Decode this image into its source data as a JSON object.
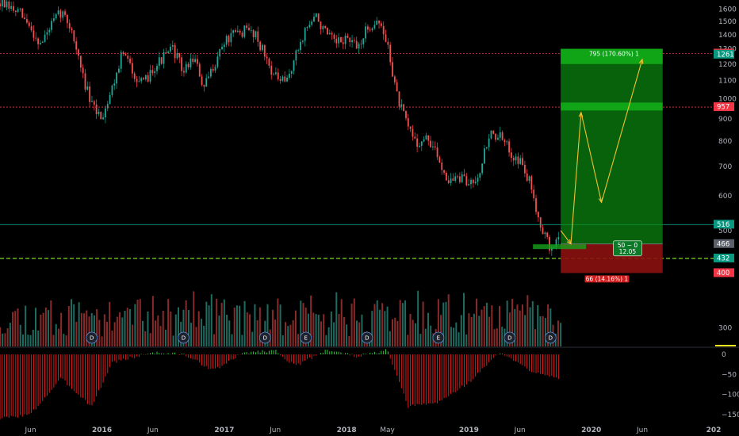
{
  "chart_data": {
    "type": "candlestick",
    "price_axis": {
      "ticks": [
        1600,
        1500,
        1400,
        1300,
        1200,
        1100,
        1000,
        900,
        800,
        700,
        600,
        500,
        400,
        300
      ],
      "tick_labels": [
        "1600",
        "1500",
        "1400",
        "1300",
        "1200",
        "1100",
        "1000",
        "900",
        "800",
        "700",
        "600",
        "500",
        "400",
        "300"
      ],
      "scale": "log",
      "range": [
        272,
        1680
      ]
    },
    "oscillator_axis": {
      "ticks": [
        0,
        -50,
        -100,
        -150
      ],
      "tick_labels": [
        "0",
        "−50",
        "−100",
        "−150"
      ],
      "range": [
        -168,
        14
      ]
    },
    "time_axis": {
      "labels": [
        "Jun",
        "2016",
        "Jun",
        "2017",
        "Jun",
        "2018",
        "May",
        "2019",
        "Jun",
        "2020",
        "Jun",
        "202"
      ],
      "dates": [
        "2015-06",
        "2016-01",
        "2016-06",
        "2017-01",
        "2017-06",
        "2018-01",
        "2018-05",
        "2019-01",
        "2019-06",
        "2020-01",
        "2020-06",
        "2021-01"
      ],
      "range": [
        "2015-03",
        "2021-01"
      ]
    },
    "price_tags": [
      {
        "label": "1268",
        "value": 1268,
        "color": "#f23645"
      },
      {
        "label": "1261",
        "value": 1261,
        "color": "#089981"
      },
      {
        "label": "957",
        "value": 957,
        "color": "#f23645"
      },
      {
        "label": "516",
        "value": 516,
        "color": "#089981"
      },
      {
        "label": "466",
        "value": 466,
        "color": "#5d606b"
      },
      {
        "label": "432",
        "value": 432,
        "color": "#089981"
      },
      {
        "label": "400",
        "value": 400,
        "color": "#f23645"
      }
    ],
    "horizontal_lines": [
      {
        "value": 1268,
        "color": "#f23645",
        "style": "dotted"
      },
      {
        "value": 957,
        "color": "#f23645",
        "style": "dotted"
      },
      {
        "value": 516,
        "color": "#089981",
        "style": "solid"
      },
      {
        "value": 432,
        "color": "#7fd12c",
        "style": "dashed"
      }
    ],
    "position_tool": {
      "entry": 466,
      "target": 1261,
      "stop": 400,
      "start": "2019-10",
      "end": "2020-08",
      "target_label": "795 (170.60%) 1",
      "stop_label": "66 (14.16%) 1",
      "center_label_1": "50 − 0",
      "center_label_2": "12.05",
      "target_zone": [
        1200,
        1300
      ],
      "mid_zone": [
        940,
        980
      ],
      "entry_zone": [
        440,
        485
      ]
    },
    "projection_path": [
      {
        "date": "2019-10",
        "price": 500
      },
      {
        "date": "2019-11",
        "price": 466
      },
      {
        "date": "2019-12",
        "price": 930
      },
      {
        "date": "2020-02",
        "price": 580
      },
      {
        "date": "2020-06",
        "price": 1230
      }
    ],
    "event_markers": [
      {
        "label": "D",
        "date": "2015-12"
      },
      {
        "label": "D",
        "date": "2016-09"
      },
      {
        "label": "D",
        "date": "2017-05"
      },
      {
        "label": "E",
        "date": "2017-09"
      },
      {
        "label": "D",
        "date": "2018-03"
      },
      {
        "label": "E",
        "date": "2018-10"
      },
      {
        "label": "D",
        "date": "2019-05"
      },
      {
        "label": "D",
        "date": "2019-09"
      }
    ],
    "series": [
      {
        "name": "price",
        "path": [
          [
            "2015-03",
            1650
          ],
          [
            "2015-05",
            1560
          ],
          [
            "2015-07",
            1330
          ],
          [
            "2015-08",
            1470
          ],
          [
            "2015-09",
            1580
          ],
          [
            "2015-10",
            1450
          ],
          [
            "2015-11",
            1150
          ],
          [
            "2015-12",
            960
          ],
          [
            "2016-01",
            910
          ],
          [
            "2016-02",
            1060
          ],
          [
            "2016-03",
            1280
          ],
          [
            "2016-04",
            1160
          ],
          [
            "2016-05",
            1070
          ],
          [
            "2016-06",
            1180
          ],
          [
            "2016-07",
            1240
          ],
          [
            "2016-08",
            1300
          ],
          [
            "2016-09",
            1150
          ],
          [
            "2016-10",
            1250
          ],
          [
            "2016-11",
            1050
          ],
          [
            "2016-12",
            1200
          ],
          [
            "2017-01",
            1350
          ],
          [
            "2017-02",
            1400
          ],
          [
            "2017-03",
            1430
          ],
          [
            "2017-04",
            1420
          ],
          [
            "2017-05",
            1250
          ],
          [
            "2017-06",
            1120
          ],
          [
            "2017-07",
            1080
          ],
          [
            "2017-08",
            1250
          ],
          [
            "2017-09",
            1450
          ],
          [
            "2017-10",
            1540
          ],
          [
            "2017-11",
            1400
          ],
          [
            "2017-12",
            1330
          ],
          [
            "2018-01",
            1380
          ],
          [
            "2018-02",
            1300
          ],
          [
            "2018-03",
            1440
          ],
          [
            "2018-04",
            1520
          ],
          [
            "2018-05",
            1330
          ],
          [
            "2018-06",
            1000
          ],
          [
            "2018-07",
            860
          ],
          [
            "2018-08",
            790
          ],
          [
            "2018-09",
            810
          ],
          [
            "2018-10",
            730
          ],
          [
            "2018-11",
            650
          ],
          [
            "2018-12",
            660
          ],
          [
            "2019-01",
            640
          ],
          [
            "2019-02",
            680
          ],
          [
            "2019-03",
            830
          ],
          [
            "2019-04",
            820
          ],
          [
            "2019-05",
            760
          ],
          [
            "2019-06",
            720
          ],
          [
            "2019-07",
            640
          ],
          [
            "2019-08",
            520
          ],
          [
            "2019-09",
            450
          ],
          [
            "2019-10",
            490
          ]
        ],
        "seed": 7
      },
      {
        "name": "volume",
        "seed": 11,
        "max": 340
      },
      {
        "name": "oscillator",
        "path": [
          [
            "2015-03",
            -160
          ],
          [
            "2015-06",
            -150
          ],
          [
            "2015-09",
            -60
          ],
          [
            "2015-12",
            -130
          ],
          [
            "2016-02",
            -20
          ],
          [
            "2016-06",
            5
          ],
          [
            "2016-09",
            0
          ],
          [
            "2016-12",
            -40
          ],
          [
            "2017-03",
            5
          ],
          [
            "2017-06",
            10
          ],
          [
            "2017-08",
            -30
          ],
          [
            "2017-11",
            12
          ],
          [
            "2018-02",
            -5
          ],
          [
            "2018-05",
            10
          ],
          [
            "2018-07",
            -130
          ],
          [
            "2018-10",
            -120
          ],
          [
            "2019-01",
            -70
          ],
          [
            "2019-04",
            5
          ],
          [
            "2019-07",
            -40
          ],
          [
            "2019-10",
            -60
          ]
        ]
      }
    ],
    "colors": {
      "up": "#089981",
      "down": "#f23645",
      "up_body": "#26a69a",
      "down_body": "#ef5350",
      "volume_up": "#1f6b60",
      "volume_down": "#8a2b2b",
      "osc_pos": "#2fcc3a",
      "osc_neg": "#e01b1b",
      "target_zone": "#0b8a10",
      "stop_zone": "#8b1111",
      "projection": "#f2c230",
      "grid_separator": "#f2e81c",
      "axis_text": "#b2b5be"
    }
  }
}
